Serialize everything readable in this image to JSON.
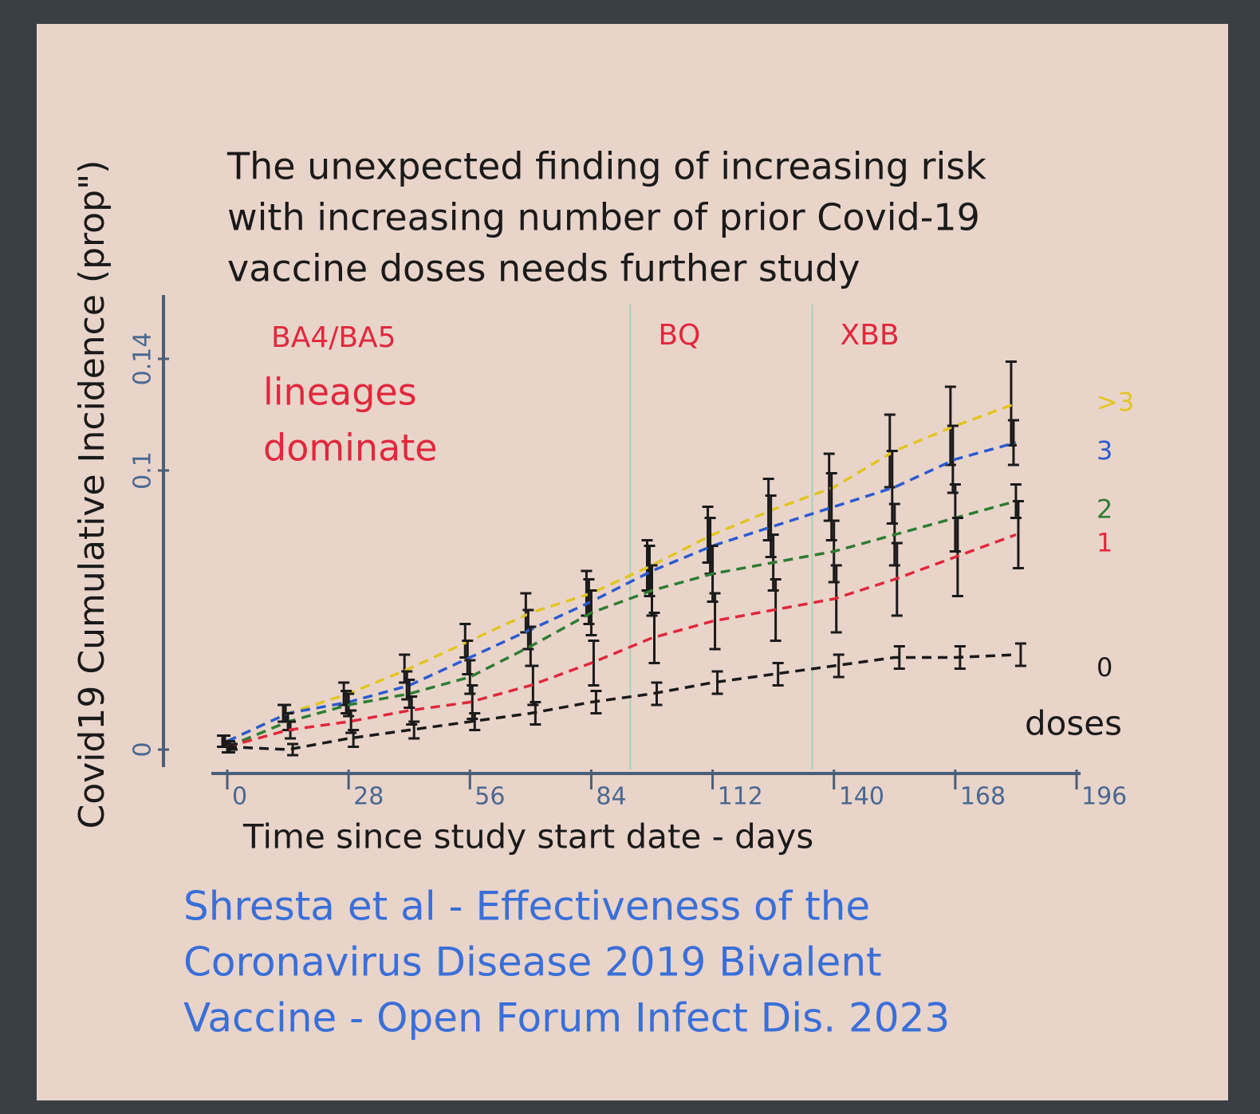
{
  "chart_data": {
    "type": "line",
    "title": [
      "The unexpected finding of increasing risk",
      "with increasing number of prior Covid-19",
      "vaccine doses needs further study"
    ],
    "xlabel": "Time since study start date - days",
    "ylabel": "Covid19 Cumulative Incidence (prop\")",
    "legend_title": "doses",
    "source": [
      "Shresta et al - Effectiveness of the",
      "Coronavirus Disease 2019 Bivalent",
      "Vaccine - Open Forum Infect Dis. 2023"
    ],
    "annotations": [
      "BA4/BA5",
      "lineages",
      "dominate"
    ],
    "vlines": [
      {
        "x": 93,
        "label": "BQ"
      },
      {
        "x": 135,
        "label": "XBB"
      }
    ],
    "x": [
      0,
      14,
      28,
      42,
      56,
      70,
      84,
      98,
      112,
      126,
      140,
      154,
      168,
      182
    ],
    "xlim": [
      0,
      196
    ],
    "xticks": [
      0,
      28,
      56,
      84,
      112,
      140,
      168,
      196
    ],
    "ylim": [
      0,
      0.16
    ],
    "yticks": [
      0,
      0.1,
      0.14
    ],
    "series": [
      {
        "name": ">3",
        "color": "#e2c520",
        "values": [
          0.003,
          0.013,
          0.02,
          0.029,
          0.039,
          0.049,
          0.056,
          0.066,
          0.077,
          0.086,
          0.094,
          0.107,
          0.116,
          0.124
        ],
        "errors": [
          0.002,
          0.003,
          0.004,
          0.005,
          0.006,
          0.007,
          0.008,
          0.009,
          0.01,
          0.011,
          0.012,
          0.013,
          0.014,
          0.015
        ]
      },
      {
        "name": "3",
        "color": "#2a5bd0",
        "values": [
          0.003,
          0.013,
          0.017,
          0.023,
          0.033,
          0.043,
          0.053,
          0.064,
          0.073,
          0.08,
          0.087,
          0.094,
          0.104,
          0.11
        ],
        "errors": [
          0.002,
          0.003,
          0.004,
          0.005,
          0.006,
          0.007,
          0.008,
          0.009,
          0.01,
          0.011,
          0.012,
          0.013,
          0.012,
          0.008
        ]
      },
      {
        "name": "2",
        "color": "#2e7d32",
        "values": [
          0.001,
          0.01,
          0.016,
          0.02,
          0.026,
          0.037,
          0.049,
          0.057,
          0.063,
          0.067,
          0.071,
          0.077,
          0.083,
          0.089
        ],
        "errors": [
          0.002,
          0.003,
          0.004,
          0.005,
          0.006,
          0.007,
          0.008,
          0.009,
          0.01,
          0.01,
          0.011,
          0.011,
          0.012,
          0.006
        ]
      },
      {
        "name": "1",
        "color": "#e0283c",
        "values": [
          0.001,
          0.007,
          0.01,
          0.014,
          0.017,
          0.023,
          0.031,
          0.04,
          0.046,
          0.05,
          0.054,
          0.061,
          0.069,
          0.077
        ],
        "errors": [
          0.002,
          0.003,
          0.004,
          0.005,
          0.006,
          0.007,
          0.008,
          0.009,
          0.01,
          0.011,
          0.012,
          0.013,
          0.014,
          0.012
        ]
      },
      {
        "name": "0",
        "color": "#1a1a1a",
        "values": [
          0.001,
          0,
          0.004,
          0.007,
          0.01,
          0.013,
          0.017,
          0.02,
          0.024,
          0.027,
          0.03,
          0.033,
          0.033,
          0.034
        ],
        "errors": [
          0.001,
          0.002,
          0.003,
          0.003,
          0.003,
          0.004,
          0.004,
          0.004,
          0.004,
          0.004,
          0.004,
          0.004,
          0.004,
          0.004
        ]
      }
    ]
  }
}
